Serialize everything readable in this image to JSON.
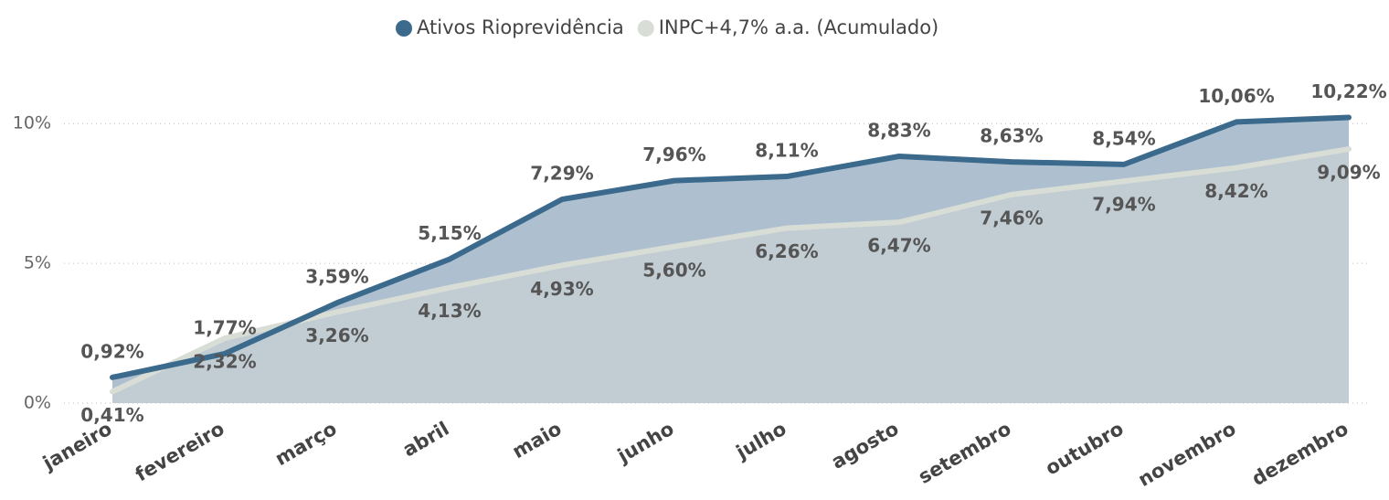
{
  "chart_data": {
    "type": "line",
    "categories": [
      "janeiro",
      "fevereiro",
      "março",
      "abril",
      "maio",
      "junho",
      "julho",
      "agosto",
      "setembro",
      "outubro",
      "novembro",
      "dezembro"
    ],
    "series": [
      {
        "name": "Ativos Rioprevidência",
        "color": "#3b6a8d",
        "area_color": "#aec0cf",
        "values": [
          0.92,
          1.77,
          3.59,
          5.15,
          7.29,
          7.96,
          8.11,
          8.83,
          8.63,
          8.54,
          10.06,
          10.22
        ],
        "value_labels": [
          "0,92%",
          "1,77%",
          "3,59%",
          "5,15%",
          "7,29%",
          "7,96%",
          "8,11%",
          "8,83%",
          "8,63%",
          "8,54%",
          "10,06%",
          "10,22%"
        ]
      },
      {
        "name": "INPC+4,7% a.a. (Acumulado)",
        "color": "#d8ddd6",
        "area_color": "#c1ccd3",
        "values": [
          0.41,
          2.32,
          3.26,
          4.13,
          4.93,
          5.6,
          6.26,
          6.47,
          7.46,
          7.94,
          8.42,
          9.09
        ],
        "value_labels": [
          "0,41%",
          "2,32%",
          "3,26%",
          "4,13%",
          "4,93%",
          "5,60%",
          "6,26%",
          "6,47%",
          "7,46%",
          "7,94%",
          "8,42%",
          "9,09%"
        ]
      }
    ],
    "ylim": [
      0,
      10.4
    ],
    "yticks": [
      {
        "value": 0,
        "label": "0%"
      },
      {
        "value": 5,
        "label": "5%"
      },
      {
        "value": 10,
        "label": "10%"
      }
    ],
    "grid": true,
    "legend": "top"
  }
}
